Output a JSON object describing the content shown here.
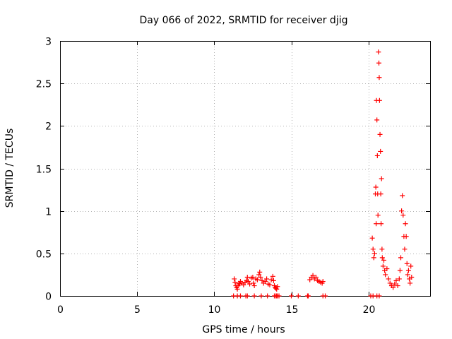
{
  "chart_data": {
    "type": "scatter",
    "title": "Day 066 of 2022, SRMTID for receiver djig",
    "xlabel": "GPS time / hours",
    "ylabel": "SRMTID / TECUs",
    "xlim": [
      0,
      24
    ],
    "ylim": [
      0,
      3
    ],
    "xticks": [
      0,
      5,
      10,
      15,
      20
    ],
    "yticks": [
      0,
      0.5,
      1,
      1.5,
      2,
      2.5,
      3
    ],
    "grid": true,
    "marker": "+",
    "series": [
      {
        "name": "SRMTID",
        "color": "#ff0000",
        "points": [
          [
            11.3,
            0.2
          ],
          [
            11.35,
            0.16
          ],
          [
            11.4,
            0.12
          ],
          [
            11.45,
            0.1
          ],
          [
            11.5,
            0.08
          ],
          [
            11.55,
            0.12
          ],
          [
            11.6,
            0.15
          ],
          [
            11.65,
            0.14
          ],
          [
            11.7,
            0.17
          ],
          [
            11.8,
            0.15
          ],
          [
            11.9,
            0.13
          ],
          [
            12.0,
            0.16
          ],
          [
            12.1,
            0.18
          ],
          [
            12.15,
            0.22
          ],
          [
            12.2,
            0.17
          ],
          [
            12.3,
            0.14
          ],
          [
            12.4,
            0.21
          ],
          [
            12.5,
            0.22
          ],
          [
            12.55,
            0.15
          ],
          [
            12.6,
            0.12
          ],
          [
            12.7,
            0.2
          ],
          [
            12.8,
            0.19
          ],
          [
            12.9,
            0.25
          ],
          [
            12.95,
            0.28
          ],
          [
            13.0,
            0.22
          ],
          [
            13.1,
            0.18
          ],
          [
            13.2,
            0.15
          ],
          [
            13.3,
            0.17
          ],
          [
            13.4,
            0.2
          ],
          [
            13.5,
            0.14
          ],
          [
            13.6,
            0.13
          ],
          [
            13.7,
            0.19
          ],
          [
            13.8,
            0.23
          ],
          [
            13.85,
            0.18
          ],
          [
            13.9,
            0.12
          ],
          [
            13.95,
            0.1
          ],
          [
            14.0,
            0.09
          ],
          [
            14.05,
            0.08
          ],
          [
            14.1,
            0.11
          ],
          [
            16.2,
            0.19
          ],
          [
            16.3,
            0.22
          ],
          [
            16.4,
            0.24
          ],
          [
            16.5,
            0.2
          ],
          [
            16.6,
            0.22
          ],
          [
            16.7,
            0.18
          ],
          [
            16.8,
            0.17
          ],
          [
            16.9,
            0.16
          ],
          [
            17.0,
            0.15
          ],
          [
            17.05,
            0.17
          ],
          [
            20.25,
            0.68
          ],
          [
            20.3,
            0.55
          ],
          [
            20.35,
            0.45
          ],
          [
            20.4,
            0.5
          ],
          [
            20.45,
            1.2
          ],
          [
            20.48,
            1.28
          ],
          [
            20.5,
            0.85
          ],
          [
            20.52,
            2.3
          ],
          [
            20.55,
            2.07
          ],
          [
            20.58,
            1.65
          ],
          [
            20.6,
            1.2
          ],
          [
            20.62,
            0.95
          ],
          [
            20.65,
            2.87
          ],
          [
            20.68,
            2.74
          ],
          [
            20.7,
            2.57
          ],
          [
            20.72,
            2.3
          ],
          [
            20.75,
            1.9
          ],
          [
            20.78,
            1.7
          ],
          [
            20.8,
            1.2
          ],
          [
            20.82,
            0.85
          ],
          [
            20.85,
            1.38
          ],
          [
            20.88,
            0.55
          ],
          [
            20.9,
            0.45
          ],
          [
            20.95,
            0.35
          ],
          [
            21.0,
            0.42
          ],
          [
            21.05,
            0.3
          ],
          [
            21.1,
            0.25
          ],
          [
            21.2,
            0.32
          ],
          [
            21.3,
            0.2
          ],
          [
            21.4,
            0.15
          ],
          [
            21.5,
            0.12
          ],
          [
            21.6,
            0.1
          ],
          [
            21.7,
            0.14
          ],
          [
            21.8,
            0.18
          ],
          [
            21.9,
            0.12
          ],
          [
            22.0,
            0.2
          ],
          [
            22.05,
            0.3
          ],
          [
            22.1,
            0.45
          ],
          [
            22.15,
            1.0
          ],
          [
            22.2,
            1.18
          ],
          [
            22.25,
            0.95
          ],
          [
            22.3,
            0.7
          ],
          [
            22.35,
            0.55
          ],
          [
            22.4,
            0.85
          ],
          [
            22.45,
            0.7
          ],
          [
            22.5,
            0.38
          ],
          [
            22.55,
            0.25
          ],
          [
            22.6,
            0.3
          ],
          [
            22.65,
            0.2
          ],
          [
            22.7,
            0.15
          ],
          [
            22.75,
            0.35
          ],
          [
            22.8,
            0.22
          ],
          [
            11.25,
            0
          ],
          [
            11.5,
            0
          ],
          [
            11.7,
            0
          ],
          [
            12.05,
            0
          ],
          [
            12.15,
            0
          ],
          [
            12.6,
            0
          ],
          [
            13.05,
            0
          ],
          [
            13.45,
            0
          ],
          [
            13.9,
            0
          ],
          [
            14.0,
            0
          ],
          [
            14.05,
            0
          ],
          [
            14.1,
            0
          ],
          [
            14.2,
            0
          ],
          [
            15.0,
            0
          ],
          [
            15.45,
            0
          ],
          [
            16.05,
            0
          ],
          [
            16.1,
            0
          ],
          [
            17.05,
            0
          ],
          [
            17.2,
            0
          ],
          [
            20.15,
            0
          ],
          [
            20.3,
            0
          ],
          [
            20.55,
            0
          ],
          [
            20.7,
            0
          ]
        ]
      }
    ]
  }
}
